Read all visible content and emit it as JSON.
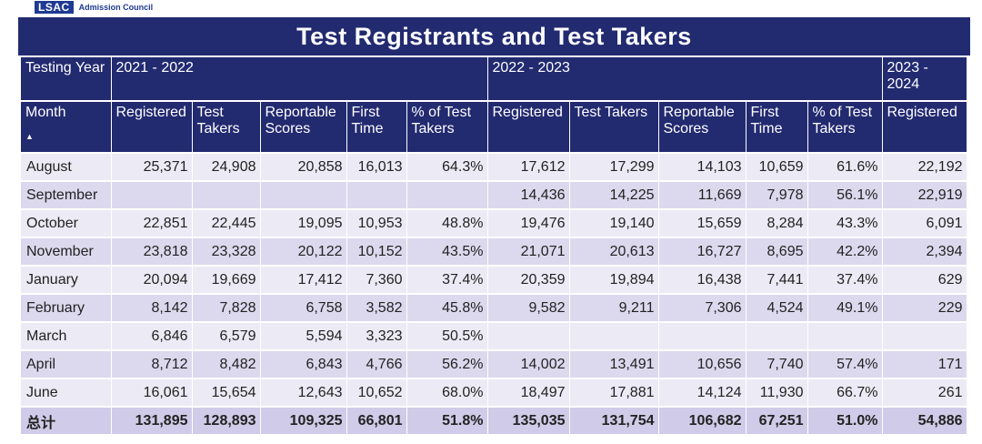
{
  "logo": {
    "mark": "LSAC",
    "text": "Admission Council"
  },
  "title": "Test Registrants and Test Takers",
  "year_header_label": "Testing Year",
  "years": [
    "2021 - 2022",
    "2022 - 2023",
    "2023 - 2024"
  ],
  "month_header_label": "Month",
  "sort_indicator": "▲",
  "columns": [
    "Registered",
    "Test Takers",
    "Reportable Scores",
    "First Time",
    "% of Test Takers",
    "Registered",
    "Test Takers",
    "Reportable Scores",
    "First Time",
    "% of Test Takers",
    "Registered"
  ],
  "rows": [
    {
      "month": "August",
      "v": [
        "25,371",
        "24,908",
        "20,858",
        "16,013",
        "64.3%",
        "17,612",
        "17,299",
        "14,103",
        "10,659",
        "61.6%",
        "22,192"
      ]
    },
    {
      "month": "September",
      "v": [
        "",
        "",
        "",
        "",
        "",
        "14,436",
        "14,225",
        "11,669",
        "7,978",
        "56.1%",
        "22,919"
      ]
    },
    {
      "month": "October",
      "v": [
        "22,851",
        "22,445",
        "19,095",
        "10,953",
        "48.8%",
        "19,476",
        "19,140",
        "15,659",
        "8,284",
        "43.3%",
        "6,091"
      ]
    },
    {
      "month": "November",
      "v": [
        "23,818",
        "23,328",
        "20,122",
        "10,152",
        "43.5%",
        "21,071",
        "20,613",
        "16,727",
        "8,695",
        "42.2%",
        "2,394"
      ]
    },
    {
      "month": "January",
      "v": [
        "20,094",
        "19,669",
        "17,412",
        "7,360",
        "37.4%",
        "20,359",
        "19,894",
        "16,438",
        "7,441",
        "37.4%",
        "629"
      ]
    },
    {
      "month": "February",
      "v": [
        "8,142",
        "7,828",
        "6,758",
        "3,582",
        "45.8%",
        "9,582",
        "9,211",
        "7,306",
        "4,524",
        "49.1%",
        "229"
      ]
    },
    {
      "month": "March",
      "v": [
        "6,846",
        "6,579",
        "5,594",
        "3,323",
        "50.5%",
        "",
        "",
        "",
        "",
        "",
        ""
      ]
    },
    {
      "month": "April",
      "v": [
        "8,712",
        "8,482",
        "6,843",
        "4,766",
        "56.2%",
        "14,002",
        "13,491",
        "10,656",
        "7,740",
        "57.4%",
        "171"
      ]
    },
    {
      "month": "June",
      "v": [
        "16,061",
        "15,654",
        "12,643",
        "10,652",
        "68.0%",
        "18,497",
        "17,881",
        "14,124",
        "11,930",
        "66.7%",
        "261"
      ]
    }
  ],
  "total": {
    "month": "总计",
    "v": [
      "131,895",
      "128,893",
      "109,325",
      "66,801",
      "51.8%",
      "135,035",
      "131,754",
      "106,682",
      "67,251",
      "51.0%",
      "54,886"
    ]
  }
}
